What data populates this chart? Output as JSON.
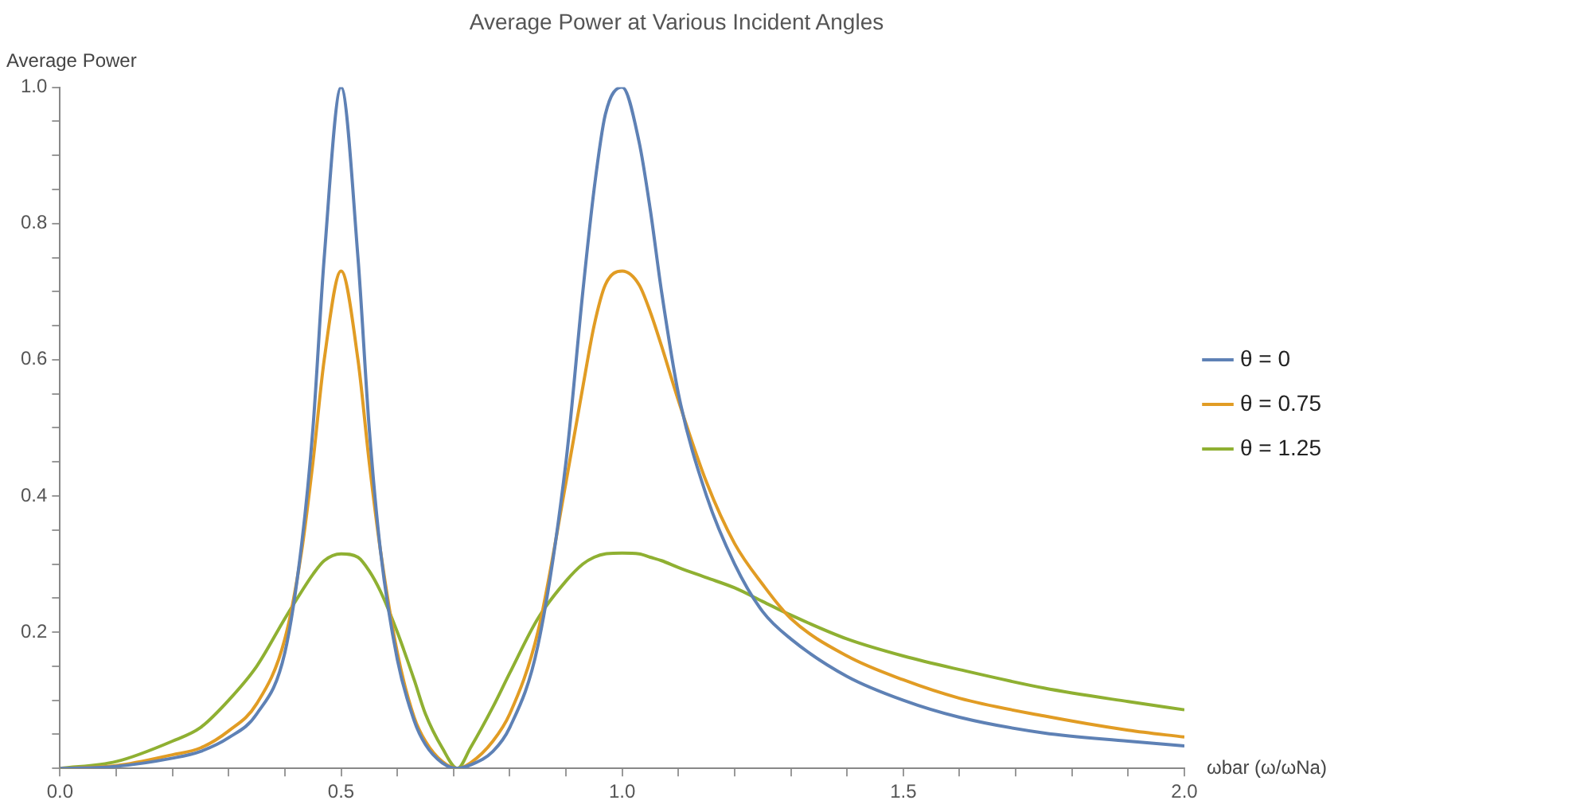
{
  "chart_data": {
    "type": "line",
    "title": "Average Power at Various Incident Angles",
    "xlabel": "ωbar (ω/ωNa)",
    "ylabel": "Average Power",
    "x": [
      0,
      0.1,
      0.2,
      0.25,
      0.3,
      0.35,
      0.4,
      0.43,
      0.45,
      0.47,
      0.5,
      0.53,
      0.55,
      0.57,
      0.6,
      0.63,
      0.65,
      0.68,
      0.707,
      0.73,
      0.77,
      0.8,
      0.85,
      0.9,
      0.93,
      0.95,
      0.97,
      1.0,
      1.03,
      1.05,
      1.07,
      1.1,
      1.15,
      1.2,
      1.25,
      1.3,
      1.4,
      1.5,
      1.6,
      1.75,
      1.9,
      2.0
    ],
    "series": [
      {
        "name": "θ = 0",
        "color": "#5e81b5",
        "values": [
          0,
          0.003,
          0.015,
          0.025,
          0.045,
          0.08,
          0.17,
          0.33,
          0.5,
          0.75,
          1.0,
          0.75,
          0.5,
          0.32,
          0.16,
          0.07,
          0.035,
          0.008,
          0,
          0.005,
          0.025,
          0.06,
          0.18,
          0.45,
          0.7,
          0.85,
          0.96,
          1.0,
          0.92,
          0.82,
          0.7,
          0.55,
          0.4,
          0.3,
          0.23,
          0.19,
          0.135,
          0.1,
          0.075,
          0.052,
          0.04,
          0.033
        ]
      },
      {
        "name": "θ = 0.75",
        "color": "#e19c24",
        "values": [
          0,
          0.004,
          0.02,
          0.03,
          0.055,
          0.095,
          0.19,
          0.32,
          0.45,
          0.6,
          0.73,
          0.6,
          0.45,
          0.32,
          0.17,
          0.075,
          0.04,
          0.01,
          0,
          0.008,
          0.04,
          0.08,
          0.2,
          0.42,
          0.56,
          0.65,
          0.71,
          0.73,
          0.71,
          0.67,
          0.62,
          0.54,
          0.42,
          0.33,
          0.27,
          0.22,
          0.165,
          0.13,
          0.103,
          0.077,
          0.056,
          0.046
        ]
      },
      {
        "name": "θ = 1.25",
        "color": "#8fb032",
        "values": [
          0,
          0.01,
          0.04,
          0.06,
          0.1,
          0.15,
          0.22,
          0.26,
          0.285,
          0.305,
          0.315,
          0.31,
          0.29,
          0.26,
          0.2,
          0.13,
          0.08,
          0.03,
          0,
          0.03,
          0.09,
          0.14,
          0.22,
          0.275,
          0.3,
          0.31,
          0.315,
          0.316,
          0.315,
          0.31,
          0.305,
          0.295,
          0.28,
          0.265,
          0.245,
          0.225,
          0.19,
          0.165,
          0.145,
          0.118,
          0.098,
          0.086
        ]
      }
    ],
    "xlim": [
      0,
      2
    ],
    "ylim": [
      0,
      1
    ],
    "xticks": [
      {
        "value": 0,
        "label": "0.0"
      },
      {
        "value": 0.1,
        "label": null
      },
      {
        "value": 0.2,
        "label": null
      },
      {
        "value": 0.3,
        "label": null
      },
      {
        "value": 0.4,
        "label": null
      },
      0.5,
      {
        "value": 0.6,
        "label": null
      },
      {
        "value": 0.7,
        "label": null
      },
      {
        "value": 0.8,
        "label": null
      },
      {
        "value": 0.9,
        "label": null
      },
      {
        "value": 1,
        "label": "1.0"
      },
      {
        "value": 1.1,
        "label": null
      },
      {
        "value": 1.2,
        "label": null
      },
      {
        "value": 1.3,
        "label": null
      },
      {
        "value": 1.4,
        "label": null
      },
      1.5,
      {
        "value": 1.6,
        "label": null
      },
      {
        "value": 1.7,
        "label": null
      },
      {
        "value": 1.8,
        "label": null
      },
      {
        "value": 1.9,
        "label": null
      },
      {
        "value": 2,
        "label": "2.0"
      }
    ],
    "yticks": [
      {
        "value": 0,
        "label": null
      },
      {
        "value": 0.05,
        "label": null
      },
      {
        "value": 0.1,
        "label": null
      },
      {
        "value": 0.15,
        "label": null
      },
      0.2,
      {
        "value": 0.25,
        "label": null
      },
      {
        "value": 0.3,
        "label": null
      },
      {
        "value": 0.35,
        "label": null
      },
      0.4,
      {
        "value": 0.45,
        "label": null
      },
      {
        "value": 0.5,
        "label": null
      },
      {
        "value": 0.55,
        "label": null
      },
      0.6,
      {
        "value": 0.65,
        "label": null
      },
      {
        "value": 0.7,
        "label": null
      },
      {
        "value": 0.75,
        "label": null
      },
      0.8,
      {
        "value": 0.85,
        "label": null
      },
      {
        "value": 0.9,
        "label": null
      },
      {
        "value": 0.95,
        "label": null
      },
      {
        "value": 1,
        "label": "1.0"
      }
    ],
    "grid": false,
    "legend": "right",
    "marker": "none",
    "line_style": "solid"
  }
}
